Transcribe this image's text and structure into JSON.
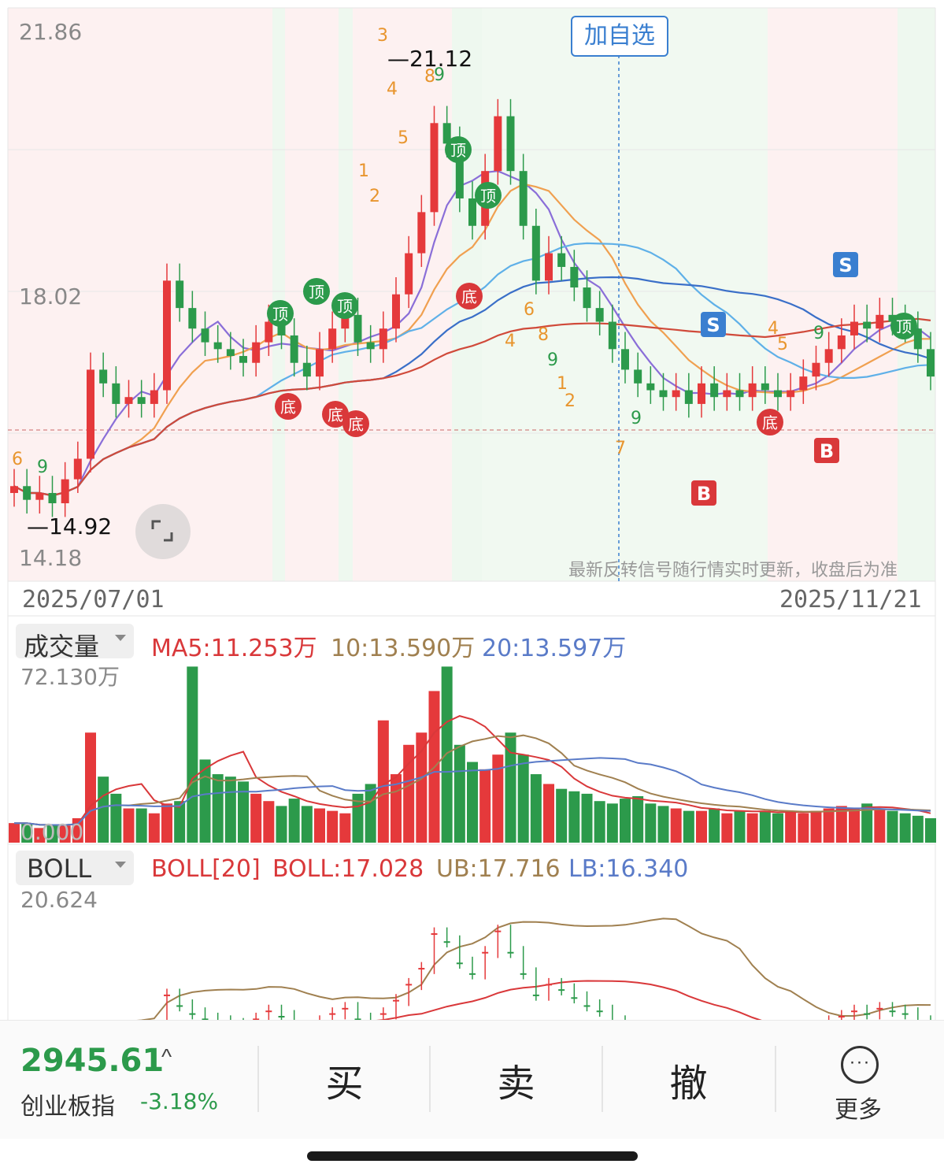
{
  "price_axis": {
    "top": "21.86",
    "mid": "18.02",
    "bottom": "14.18"
  },
  "annotations": {
    "high": "21.12",
    "low": "14.92"
  },
  "dates": {
    "start": "2025/07/01",
    "end": "2025/11/21"
  },
  "add_watchlist": "加自选",
  "notice": "最新反转信号随行情实时更新，收盘后为准",
  "volume_panel": {
    "selector": "成交量",
    "ma5": "MA5:11.253万",
    "ma10": "10:13.590万",
    "ma20": "20:13.597万",
    "scale_top": "72.130万",
    "scale_bottom": "0.000"
  },
  "boll_panel": {
    "selector": "BOLL",
    "boll_label": "BOLL[20]",
    "boll": "BOLL:17.028",
    "ub": "UB:17.716",
    "lb": "LB:16.340",
    "scale_top": "20.624"
  },
  "signals": {
    "top": "顶",
    "bottom": "底",
    "sell": "S",
    "buy": "B",
    "counts": [
      "1",
      "2",
      "3",
      "4",
      "5",
      "6",
      "7",
      "8",
      "9"
    ]
  },
  "bottom_bar": {
    "index_value": "2945.61",
    "index_name": "创业板指",
    "index_change": "-3.18%",
    "buy": "买",
    "sell": "卖",
    "cancel": "撤",
    "more": "更多"
  },
  "colors": {
    "up": "#e5393b",
    "down": "#2c9a4b",
    "accent": "#3a7fd0"
  },
  "chart_data": [
    {
      "type": "candlestick",
      "title": "",
      "x_range": [
        "2025/07/01",
        "2025/11/21"
      ],
      "ylim": [
        14.18,
        21.86
      ],
      "high": 21.12,
      "low": 14.92,
      "closes": [
        15.2,
        15.0,
        15.1,
        14.95,
        15.3,
        15.6,
        16.9,
        16.7,
        16.4,
        16.5,
        16.4,
        16.6,
        18.2,
        17.8,
        17.5,
        17.3,
        17.2,
        17.1,
        17.0,
        17.3,
        17.6,
        17.4,
        17.0,
        16.8,
        17.2,
        17.5,
        17.7,
        17.3,
        17.2,
        17.5,
        18.0,
        18.6,
        19.2,
        20.5,
        20.2,
        19.4,
        19.0,
        19.8,
        20.6,
        19.8,
        19.0,
        18.2,
        18.6,
        18.4,
        18.1,
        17.8,
        17.6,
        17.2,
        16.9,
        16.7,
        16.6,
        16.5,
        16.6,
        16.4,
        16.7,
        16.5,
        16.6,
        16.5,
        16.7,
        16.6,
        16.5,
        16.6,
        16.8,
        17.0,
        17.2,
        17.4,
        17.6,
        17.5,
        17.7,
        17.6,
        17.5,
        17.2,
        16.8
      ]
    },
    {
      "type": "bar",
      "title": "成交量",
      "ylim": [
        0,
        72.13
      ],
      "unit": "万",
      "values": [
        8,
        8,
        6,
        7,
        7,
        10,
        45,
        27,
        20,
        14,
        14,
        12,
        16,
        17,
        72,
        34,
        28,
        27,
        25,
        20,
        17,
        15,
        18,
        15,
        14,
        13,
        12,
        20,
        24,
        50,
        28,
        40,
        45,
        62,
        72,
        40,
        33,
        30,
        36,
        45,
        36,
        28,
        24,
        22,
        21,
        20,
        17,
        16,
        18,
        19,
        16,
        15,
        14,
        13,
        13,
        14,
        12,
        13,
        12,
        13,
        12,
        13,
        12,
        13,
        14,
        15,
        14,
        16,
        14,
        13,
        12,
        11,
        10
      ]
    }
  ]
}
